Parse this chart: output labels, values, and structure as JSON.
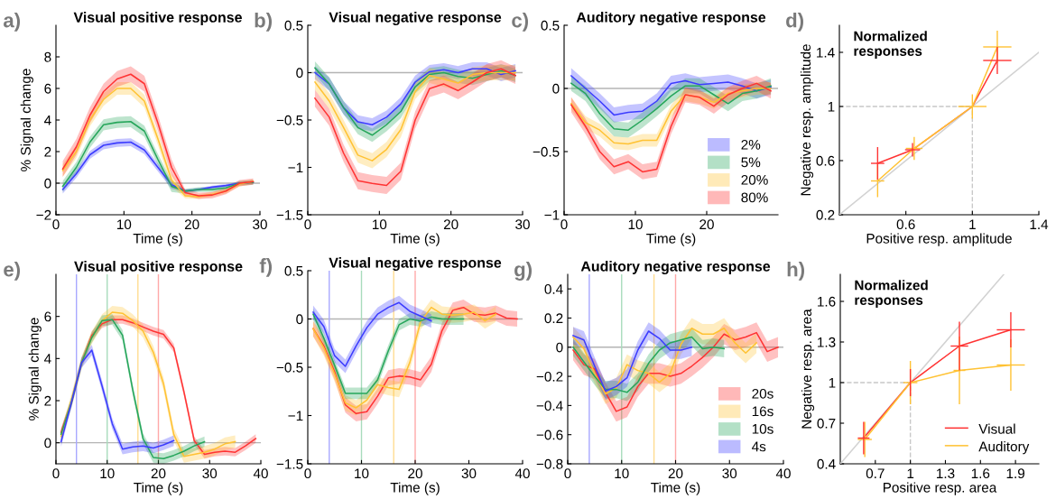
{
  "chart_data": [
    {
      "type": "line",
      "title": "Visual positive response",
      "xlabel": "Time (s)",
      "ylabel": "% Signal change",
      "annotations": [
        "a)"
      ],
      "x": [
        1,
        3,
        5,
        7,
        9,
        11,
        13,
        15,
        17,
        19,
        21,
        23,
        25,
        27,
        29
      ],
      "xlim": [
        0,
        30
      ],
      "xticks": [
        0,
        10,
        20,
        30
      ],
      "ylim": [
        -2,
        10
      ],
      "yticks": [
        {
          "value": -2,
          "label": "−2"
        },
        0,
        2,
        4,
        6,
        8
      ],
      "ref_lines": [
        {
          "axis": "y",
          "value": 0,
          "color": "#b4b4b4"
        }
      ],
      "series": [
        {
          "color": "#3c3cff",
          "values": [
            -0.4,
            0.6,
            1.8,
            2.4,
            2.55,
            2.6,
            2.1,
            1.0,
            -0.1,
            -0.5,
            -0.4,
            -0.25,
            -0.15,
            0.0,
            0.05
          ],
          "lower": [
            -0.65,
            0.35,
            1.55,
            2.15,
            2.3,
            2.35,
            1.85,
            0.75,
            -0.35,
            -0.6,
            -0.5,
            -0.35,
            -0.25,
            -0.1,
            -0.05
          ],
          "upper": [
            -0.15,
            0.85,
            2.05,
            2.65,
            2.8,
            2.85,
            2.35,
            1.25,
            0.15,
            -0.4,
            -0.3,
            -0.15,
            -0.05,
            0.1,
            0.15
          ]
        },
        {
          "color": "#26a65b",
          "values": [
            -0.2,
            1.0,
            2.6,
            3.7,
            3.85,
            3.9,
            3.3,
            1.5,
            -0.2,
            -0.5,
            -0.4,
            -0.4,
            -0.3,
            0.0,
            0.05
          ],
          "lower": [
            -0.55,
            0.65,
            2.25,
            3.35,
            3.5,
            3.55,
            2.95,
            1.15,
            -0.55,
            -0.65,
            -0.55,
            -0.55,
            -0.45,
            -0.15,
            -0.1
          ],
          "upper": [
            0.15,
            1.35,
            2.95,
            4.05,
            4.2,
            4.25,
            3.65,
            1.85,
            0.15,
            -0.35,
            -0.25,
            -0.25,
            -0.15,
            0.15,
            0.2
          ]
        },
        {
          "color": "#ffc233",
          "values": [
            0.8,
            2.0,
            4.0,
            5.3,
            6.0,
            6.0,
            5.2,
            2.8,
            0.2,
            -0.8,
            -0.85,
            -0.7,
            -0.5,
            -0.05,
            0.1
          ],
          "lower": [
            0.4,
            1.6,
            3.6,
            4.9,
            5.6,
            5.6,
            4.8,
            2.4,
            -0.2,
            -0.95,
            -1.0,
            -0.85,
            -0.65,
            -0.2,
            -0.05
          ],
          "upper": [
            1.2,
            2.4,
            4.4,
            5.7,
            6.4,
            6.4,
            5.6,
            3.2,
            0.6,
            -0.65,
            -0.7,
            -0.55,
            -0.35,
            0.1,
            0.25
          ]
        },
        {
          "color": "#ff3333",
          "values": [
            0.9,
            2.3,
            4.3,
            5.8,
            6.6,
            6.9,
            6.3,
            3.8,
            1.0,
            -0.6,
            -0.8,
            -0.75,
            -0.5,
            0.0,
            0.1
          ],
          "lower": [
            0.4,
            1.8,
            3.8,
            5.3,
            6.1,
            6.4,
            5.8,
            3.3,
            0.5,
            -0.8,
            -1.0,
            -0.95,
            -0.7,
            -0.2,
            -0.1
          ],
          "upper": [
            1.4,
            2.8,
            4.8,
            6.3,
            7.1,
            7.4,
            6.8,
            4.3,
            1.5,
            -0.4,
            -0.6,
            -0.55,
            -0.3,
            0.2,
            0.3
          ]
        }
      ]
    },
    {
      "type": "line",
      "title": "Visual negative response",
      "xlabel": "Time (s)",
      "annotations": [
        "b)"
      ],
      "x": [
        1,
        3,
        5,
        7,
        9,
        11,
        13,
        15,
        17,
        19,
        21,
        23,
        25,
        27,
        29
      ],
      "xlim": [
        0,
        30
      ],
      "xticks": [
        0,
        10,
        20,
        30
      ],
      "ylim": [
        -1.5,
        0.5
      ],
      "yticks": [
        {
          "value": -1.5,
          "label": "−1.5"
        },
        {
          "value": -1,
          "label": "−1"
        },
        {
          "value": -0.5,
          "label": "−0.5"
        },
        0,
        0.5
      ],
      "ref_lines": [
        {
          "axis": "y",
          "value": 0,
          "color": "#b4b4b4"
        }
      ],
      "series": [
        {
          "color": "#3c3cff",
          "values": [
            0.0,
            -0.12,
            -0.37,
            -0.52,
            -0.55,
            -0.47,
            -0.33,
            -0.1,
            0.01,
            0.03,
            0.0,
            0.04,
            0.04,
            -0.02,
            0.02
          ],
          "lower": [
            -0.07,
            -0.19,
            -0.44,
            -0.59,
            -0.62,
            -0.54,
            -0.4,
            -0.17,
            -0.06,
            -0.04,
            -0.07,
            -0.03,
            -0.03,
            -0.09,
            -0.05
          ],
          "upper": [
            0.07,
            -0.05,
            -0.3,
            -0.45,
            -0.48,
            -0.4,
            -0.26,
            -0.03,
            0.08,
            0.1,
            0.07,
            0.11,
            0.11,
            0.05,
            0.09
          ]
        },
        {
          "color": "#26a65b",
          "values": [
            0.05,
            -0.12,
            -0.37,
            -0.58,
            -0.66,
            -0.55,
            -0.41,
            -0.15,
            -0.02,
            0.0,
            -0.04,
            -0.06,
            -0.02,
            0.02,
            -0.03
          ],
          "lower": [
            -0.02,
            -0.19,
            -0.44,
            -0.65,
            -0.73,
            -0.62,
            -0.48,
            -0.22,
            -0.09,
            -0.07,
            -0.11,
            -0.13,
            -0.09,
            -0.05,
            -0.1
          ],
          "upper": [
            0.12,
            -0.05,
            -0.3,
            -0.51,
            -0.59,
            -0.48,
            -0.34,
            -0.08,
            0.05,
            0.07,
            0.03,
            0.01,
            0.05,
            0.09,
            0.04
          ]
        },
        {
          "color": "#ffc233",
          "values": [
            -0.1,
            -0.3,
            -0.58,
            -0.87,
            -0.93,
            -0.81,
            -0.6,
            -0.2,
            -0.03,
            -0.07,
            -0.11,
            -0.02,
            0.0,
            0.0,
            0.0
          ],
          "lower": [
            -0.18,
            -0.38,
            -0.66,
            -0.95,
            -1.01,
            -0.89,
            -0.68,
            -0.28,
            -0.11,
            -0.15,
            -0.19,
            -0.1,
            -0.08,
            -0.08,
            -0.08
          ],
          "upper": [
            -0.02,
            -0.22,
            -0.5,
            -0.79,
            -0.85,
            -0.73,
            -0.52,
            -0.12,
            0.05,
            0.01,
            -0.03,
            0.06,
            0.08,
            0.08,
            0.08
          ]
        },
        {
          "color": "#ff3333",
          "values": [
            -0.27,
            -0.47,
            -0.85,
            -1.14,
            -1.17,
            -1.19,
            -1.04,
            -0.5,
            -0.17,
            -0.12,
            -0.19,
            -0.1,
            0.0,
            0.04,
            -0.03
          ],
          "lower": [
            -0.36,
            -0.56,
            -0.94,
            -1.23,
            -1.26,
            -1.28,
            -1.13,
            -0.59,
            -0.26,
            -0.21,
            -0.28,
            -0.19,
            -0.09,
            -0.05,
            -0.12
          ],
          "upper": [
            -0.18,
            -0.38,
            -0.76,
            -1.05,
            -1.08,
            -1.1,
            -0.95,
            -0.41,
            -0.08,
            -0.03,
            -0.1,
            -0.01,
            0.09,
            0.13,
            0.06
          ]
        }
      ]
    },
    {
      "type": "line",
      "title": "Auditory negative response",
      "xlabel": "Time (s)",
      "annotations": [
        "c)"
      ],
      "legend": "bottom right",
      "x": [
        1,
        3,
        5,
        7,
        9,
        11,
        13,
        15,
        17,
        19,
        21,
        23,
        25,
        27,
        29
      ],
      "xlim": [
        0,
        30
      ],
      "xticks": [
        0,
        10,
        20
      ],
      "ylim": [
        -1,
        0.5
      ],
      "yticks": [
        {
          "value": -1,
          "label": "−1"
        },
        {
          "value": -0.5,
          "label": "−0.5"
        },
        0,
        0.5
      ],
      "ref_lines": [
        {
          "axis": "y",
          "value": 0,
          "color": "#b4b4b4"
        }
      ],
      "series": [
        {
          "name": "2%",
          "color": "#3c3cff",
          "values": [
            0.1,
            0.0,
            -0.1,
            -0.21,
            -0.19,
            -0.18,
            -0.1,
            0.04,
            0.06,
            0.03,
            0.04,
            0.05,
            0.02,
            -0.02,
            0.01
          ],
          "lower": [
            0.04,
            -0.06,
            -0.16,
            -0.27,
            -0.25,
            -0.24,
            -0.16,
            -0.02,
            0.0,
            -0.03,
            -0.02,
            -0.01,
            -0.04,
            -0.08,
            -0.05
          ],
          "upper": [
            0.16,
            0.06,
            -0.04,
            -0.15,
            -0.13,
            -0.12,
            -0.04,
            0.1,
            0.12,
            0.09,
            0.1,
            0.11,
            0.08,
            0.04,
            0.07
          ]
        },
        {
          "name": "5%",
          "color": "#26a65b",
          "values": [
            0.04,
            -0.04,
            -0.2,
            -0.32,
            -0.33,
            -0.25,
            -0.16,
            -0.06,
            0.02,
            0.02,
            -0.05,
            -0.12,
            -0.04,
            -0.02,
            0.02
          ],
          "lower": [
            -0.02,
            -0.1,
            -0.26,
            -0.38,
            -0.39,
            -0.31,
            -0.22,
            -0.12,
            -0.04,
            -0.04,
            -0.11,
            -0.18,
            -0.1,
            -0.08,
            -0.04
          ],
          "upper": [
            0.1,
            0.02,
            -0.14,
            -0.26,
            -0.27,
            -0.19,
            -0.1,
            0.0,
            0.08,
            0.08,
            0.01,
            -0.06,
            0.02,
            0.04,
            0.08
          ]
        },
        {
          "name": "20%",
          "color": "#ffc233",
          "values": [
            -0.12,
            -0.27,
            -0.33,
            -0.43,
            -0.44,
            -0.41,
            -0.41,
            -0.18,
            -0.05,
            -0.07,
            -0.11,
            -0.04,
            -0.02,
            0.0,
            0.0
          ],
          "lower": [
            -0.17,
            -0.32,
            -0.38,
            -0.48,
            -0.49,
            -0.46,
            -0.46,
            -0.23,
            -0.1,
            -0.12,
            -0.16,
            -0.09,
            -0.07,
            -0.05,
            -0.05
          ],
          "upper": [
            -0.07,
            -0.22,
            -0.28,
            -0.38,
            -0.39,
            -0.36,
            -0.36,
            -0.13,
            0.0,
            -0.02,
            -0.06,
            0.01,
            0.03,
            0.05,
            0.05
          ]
        },
        {
          "name": "80%",
          "color": "#ff3333",
          "values": [
            -0.13,
            -0.3,
            -0.5,
            -0.62,
            -0.58,
            -0.66,
            -0.64,
            -0.3,
            -0.05,
            -0.07,
            -0.14,
            -0.05,
            0.0,
            0.04,
            -0.02
          ],
          "lower": [
            -0.19,
            -0.36,
            -0.56,
            -0.68,
            -0.64,
            -0.72,
            -0.7,
            -0.36,
            -0.11,
            -0.13,
            -0.2,
            -0.11,
            -0.06,
            -0.02,
            -0.08
          ],
          "upper": [
            -0.07,
            -0.24,
            -0.44,
            -0.56,
            -0.52,
            -0.6,
            -0.58,
            -0.24,
            0.01,
            -0.01,
            -0.08,
            0.01,
            0.06,
            0.1,
            0.04
          ]
        }
      ]
    },
    {
      "type": "line",
      "xlabel": "Positive resp. amplitude",
      "ylabel": "Negative resp. amplitude",
      "annotations": [
        "d)",
        "Normalized\nresponses"
      ],
      "xlim": [
        0.2,
        1.4
      ],
      "xticks": [
        0.6,
        1,
        1.4
      ],
      "ylim": [
        0.2,
        1.6
      ],
      "yticks": [
        0.2,
        0.6,
        1,
        1.4
      ],
      "ref_lines": [
        {
          "axis": "x",
          "value": 1,
          "color": "#c8c8c8",
          "line_style": "dashed"
        },
        {
          "axis": "y",
          "value": 1,
          "color": "#c8c8c8",
          "line_style": "dashed"
        }
      ],
      "series": [
        {
          "color": "#d2d2d2",
          "x": [
            0.2,
            1.4
          ],
          "values": [
            0.2,
            1.4
          ]
        },
        {
          "color": "#ff3333",
          "x": [
            0.43,
            0.64,
            1,
            1.15
          ],
          "values": [
            0.58,
            0.68,
            1,
            1.34
          ],
          "errors": [
            0.12,
            0.05,
            null,
            0.1
          ],
          "xerrors": [
            0.04,
            0.045,
            null,
            0.085
          ]
        },
        {
          "color": "#ffc233",
          "x": [
            0.43,
            0.65,
            1,
            1.15
          ],
          "values": [
            0.45,
            0.69,
            1,
            1.44
          ],
          "errors": [
            0.12,
            0.085,
            0.09,
            0.12
          ],
          "xerrors": [
            0.04,
            0.05,
            0.085,
            0.085
          ]
        }
      ]
    },
    {
      "type": "line",
      "title": "Visual positive response",
      "xlabel": "Time (s)",
      "ylabel": "% Signal change",
      "annotations": [
        "e)"
      ],
      "xlim": [
        0,
        40
      ],
      "xticks": [
        0,
        10,
        20,
        30,
        40
      ],
      "ylim": [
        -1,
        8
      ],
      "yticks": [
        0,
        2,
        4,
        6
      ],
      "ref_lines": [
        {
          "axis": "y",
          "value": 0,
          "color": "#b4b4b4"
        },
        {
          "axis": "x",
          "value": 4,
          "color": "#a8a8ff"
        },
        {
          "axis": "x",
          "value": 10,
          "color": "#a8dcbc"
        },
        {
          "axis": "x",
          "value": 16,
          "color": "#ffdc90"
        },
        {
          "axis": "x",
          "value": 20,
          "color": "#ffa8a8"
        }
      ],
      "series": [
        {
          "color": "#ff3333",
          "x": [
            1,
            3,
            5,
            7,
            9,
            11,
            13,
            15,
            17,
            19,
            21,
            23,
            25,
            27,
            29,
            31,
            33,
            35,
            37,
            39
          ],
          "values": [
            0.5,
            1.9,
            3.8,
            5.1,
            5.65,
            5.85,
            5.85,
            5.7,
            5.5,
            5.3,
            5.15,
            4.5,
            2.4,
            0.1,
            -0.55,
            -0.45,
            -0.4,
            -0.45,
            -0.15,
            0.2
          ],
          "lower": [
            0.3,
            1.7,
            3.6,
            4.9,
            5.45,
            5.65,
            5.65,
            5.5,
            5.3,
            5.1,
            4.95,
            4.3,
            2.2,
            -0.1,
            -0.75,
            -0.65,
            -0.6,
            -0.65,
            -0.35,
            0.0
          ],
          "upper": [
            0.7,
            2.1,
            4.0,
            5.3,
            5.85,
            6.05,
            6.05,
            5.9,
            5.7,
            5.5,
            5.35,
            4.7,
            2.6,
            0.3,
            -0.35,
            -0.25,
            -0.2,
            -0.25,
            0.05,
            0.4
          ]
        },
        {
          "color": "#ffc233",
          "x": [
            1,
            3,
            5,
            7,
            9,
            11,
            13,
            15,
            17,
            19,
            21,
            23,
            25,
            27,
            29,
            31,
            33,
            35
          ],
          "values": [
            0.3,
            2.0,
            3.8,
            5.0,
            5.8,
            6.2,
            6.15,
            5.8,
            5.3,
            4.3,
            2.8,
            0.4,
            -0.65,
            -0.55,
            -0.45,
            -0.3,
            -0.05,
            0.05
          ],
          "lower": [
            0.0,
            1.7,
            3.5,
            4.7,
            5.5,
            5.9,
            5.85,
            5.5,
            5.0,
            4.0,
            2.5,
            0.1,
            -0.95,
            -0.85,
            -0.75,
            -0.6,
            -0.35,
            -0.25
          ],
          "upper": [
            0.6,
            2.3,
            4.1,
            5.3,
            6.1,
            6.5,
            6.45,
            6.1,
            5.6,
            4.6,
            3.1,
            0.7,
            -0.35,
            -0.25,
            -0.15,
            0.0,
            0.25,
            0.35
          ]
        },
        {
          "color": "#26a65b",
          "x": [
            1,
            3,
            5,
            7,
            9,
            11,
            13,
            15,
            17,
            19,
            21,
            23,
            25,
            27,
            29
          ],
          "values": [
            0.4,
            1.9,
            3.8,
            5.0,
            5.8,
            5.85,
            5.1,
            2.5,
            0.2,
            -0.7,
            -0.75,
            -0.6,
            -0.4,
            -0.15,
            0.05
          ],
          "lower": [
            0.15,
            1.65,
            3.55,
            4.75,
            5.55,
            5.6,
            4.85,
            2.25,
            -0.05,
            -0.95,
            -1.0,
            -0.85,
            -0.65,
            -0.4,
            -0.2
          ],
          "upper": [
            0.65,
            2.15,
            4.05,
            5.25,
            6.05,
            6.1,
            5.35,
            2.75,
            0.45,
            -0.45,
            -0.5,
            -0.35,
            -0.15,
            0.1,
            0.3
          ]
        },
        {
          "color": "#3c3cff",
          "x": [
            1,
            3,
            5,
            7,
            9,
            11,
            13,
            15,
            17,
            19,
            21,
            23
          ],
          "values": [
            0.05,
            1.9,
            3.8,
            4.4,
            2.7,
            0.9,
            -0.3,
            -0.2,
            -0.15,
            -0.25,
            -0.1,
            0.1
          ],
          "lower": [
            -0.2,
            1.65,
            3.55,
            4.15,
            2.45,
            0.65,
            -0.55,
            -0.45,
            -0.4,
            -0.5,
            -0.35,
            -0.15
          ],
          "upper": [
            0.3,
            2.15,
            4.05,
            4.65,
            2.95,
            1.15,
            -0.05,
            0.05,
            0.1,
            0.0,
            0.15,
            0.35
          ]
        }
      ]
    },
    {
      "type": "line",
      "title": "Visual negative response",
      "xlabel": "Time (s)",
      "annotations": [
        "f)"
      ],
      "xlim": [
        0,
        40
      ],
      "xticks": [
        0,
        10,
        20,
        30,
        40
      ],
      "ylim": [
        -1.5,
        0.5
      ],
      "yticks": [
        {
          "value": -1.5,
          "label": "−1.5"
        },
        {
          "value": -1,
          "label": "−1"
        },
        {
          "value": -0.5,
          "label": "−0.5"
        },
        0,
        0.5
      ],
      "ref_lines": [
        {
          "axis": "y",
          "value": 0,
          "color": "#b4b4b4"
        },
        {
          "axis": "x",
          "value": 4,
          "color": "#a8a8ff"
        },
        {
          "axis": "x",
          "value": 10,
          "color": "#a8dcbc"
        },
        {
          "axis": "x",
          "value": 16,
          "color": "#ffdc90"
        },
        {
          "axis": "x",
          "value": 20,
          "color": "#ffa8a8"
        }
      ],
      "series": [
        {
          "color": "#ff3333",
          "x": [
            1,
            3,
            5,
            7,
            9,
            11,
            13,
            15,
            17,
            19,
            21,
            23,
            25,
            27,
            29,
            31,
            33,
            35,
            37,
            39
          ],
          "values": [
            -0.1,
            -0.28,
            -0.55,
            -0.89,
            -0.98,
            -0.96,
            -0.8,
            -0.61,
            -0.59,
            -0.6,
            -0.63,
            -0.47,
            -0.12,
            0.09,
            0.12,
            0.05,
            0.04,
            0.06,
            0.01,
            0.0
          ],
          "lower": [
            -0.18,
            -0.36,
            -0.63,
            -0.97,
            -1.06,
            -1.04,
            -0.88,
            -0.69,
            -0.67,
            -0.68,
            -0.71,
            -0.55,
            -0.2,
            0.01,
            0.04,
            -0.03,
            -0.04,
            -0.02,
            -0.07,
            -0.08
          ],
          "upper": [
            -0.02,
            -0.2,
            -0.47,
            -0.81,
            -0.9,
            -0.88,
            -0.72,
            -0.53,
            -0.51,
            -0.52,
            -0.55,
            -0.39,
            -0.04,
            0.17,
            0.2,
            0.13,
            0.12,
            0.14,
            0.09,
            0.08
          ]
        },
        {
          "color": "#ffc233",
          "x": [
            1,
            3,
            5,
            7,
            9,
            11,
            13,
            15,
            17,
            19,
            21,
            23,
            25,
            27,
            29,
            31,
            33,
            35
          ],
          "values": [
            -0.1,
            -0.3,
            -0.57,
            -0.87,
            -0.92,
            -0.84,
            -0.68,
            -0.71,
            -0.73,
            -0.45,
            -0.03,
            0.12,
            0.05,
            0.04,
            0.05,
            0.07,
            -0.02,
            0.05
          ],
          "lower": [
            -0.18,
            -0.38,
            -0.65,
            -0.95,
            -1.0,
            -0.92,
            -0.76,
            -0.79,
            -0.81,
            -0.53,
            -0.11,
            0.04,
            -0.03,
            -0.04,
            -0.03,
            -0.01,
            -0.1,
            -0.03
          ],
          "upper": [
            -0.02,
            -0.22,
            -0.49,
            -0.79,
            -0.84,
            -0.76,
            -0.6,
            -0.63,
            -0.65,
            -0.37,
            0.05,
            0.2,
            0.13,
            0.12,
            0.13,
            0.15,
            0.06,
            0.13
          ]
        },
        {
          "color": "#26a65b",
          "x": [
            1,
            3,
            5,
            7,
            9,
            11,
            13,
            15,
            17,
            19,
            21,
            23,
            25,
            27,
            29
          ],
          "values": [
            0.05,
            -0.2,
            -0.48,
            -0.77,
            -0.77,
            -0.77,
            -0.63,
            -0.33,
            -0.06,
            0.0,
            -0.02,
            0.02,
            0.0,
            0.0,
            0.0
          ],
          "lower": [
            -0.01,
            -0.26,
            -0.54,
            -0.83,
            -0.83,
            -0.83,
            -0.69,
            -0.39,
            -0.12,
            -0.06,
            -0.08,
            -0.04,
            -0.06,
            -0.06,
            -0.06
          ],
          "upper": [
            0.11,
            -0.14,
            -0.42,
            -0.71,
            -0.71,
            -0.71,
            -0.57,
            -0.27,
            0.0,
            0.06,
            0.04,
            0.08,
            0.06,
            0.06,
            0.06
          ]
        },
        {
          "color": "#3c3cff",
          "x": [
            1,
            3,
            5,
            7,
            9,
            11,
            13,
            15,
            17,
            19,
            21,
            23
          ],
          "values": [
            0.07,
            -0.08,
            -0.38,
            -0.49,
            -0.28,
            -0.09,
            0.05,
            0.12,
            0.17,
            0.08,
            0.03,
            -0.02
          ],
          "lower": [
            0.0,
            -0.15,
            -0.45,
            -0.56,
            -0.35,
            -0.16,
            -0.02,
            0.05,
            0.1,
            0.01,
            -0.04,
            -0.09
          ],
          "upper": [
            0.14,
            -0.01,
            -0.31,
            -0.42,
            -0.21,
            -0.02,
            0.12,
            0.19,
            0.24,
            0.15,
            0.1,
            0.05
          ]
        }
      ]
    },
    {
      "type": "line",
      "title": "Auditory negative response",
      "xlabel": "Time (s)",
      "annotations": [
        "g)"
      ],
      "legend": "bottom right",
      "xlim": [
        0,
        40
      ],
      "xticks": [
        0,
        10,
        20,
        30,
        40
      ],
      "ylim": [
        -0.8,
        0.5
      ],
      "yticks": [
        {
          "value": -0.8,
          "label": "−0.8"
        },
        {
          "value": -0.6,
          "label": "−0.6"
        },
        {
          "value": -0.4,
          "label": "−0.4"
        },
        {
          "value": -0.2,
          "label": "−0.2"
        },
        0,
        0.2,
        0.4
      ],
      "ref_lines": [
        {
          "axis": "y",
          "value": 0,
          "color": "#b4b4b4"
        },
        {
          "axis": "x",
          "value": 4,
          "color": "#a8a8ff"
        },
        {
          "axis": "x",
          "value": 10,
          "color": "#a8dcbc"
        },
        {
          "axis": "x",
          "value": 16,
          "color": "#ffdc90"
        },
        {
          "axis": "x",
          "value": 20,
          "color": "#ffa8a8"
        }
      ],
      "series": [
        {
          "name": "20s",
          "color": "#ff3333",
          "x": [
            1,
            3,
            5,
            7,
            9,
            11,
            13,
            15,
            17,
            19,
            21,
            23,
            25,
            27,
            29,
            31,
            33,
            35,
            37,
            39
          ],
          "values": [
            -0.02,
            -0.12,
            -0.15,
            -0.31,
            -0.44,
            -0.41,
            -0.27,
            -0.18,
            -0.18,
            -0.2,
            -0.18,
            -0.13,
            -0.07,
            0.0,
            0.09,
            0.05,
            0.07,
            0.1,
            -0.03,
            0.0
          ],
          "lower": [
            -0.09,
            -0.19,
            -0.22,
            -0.38,
            -0.51,
            -0.48,
            -0.34,
            -0.25,
            -0.25,
            -0.27,
            -0.25,
            -0.2,
            -0.14,
            -0.07,
            0.02,
            -0.02,
            0.0,
            0.03,
            -0.1,
            -0.07
          ],
          "upper": [
            0.05,
            -0.05,
            -0.08,
            -0.24,
            -0.37,
            -0.34,
            -0.2,
            -0.11,
            -0.11,
            -0.13,
            -0.11,
            -0.06,
            0.0,
            0.07,
            0.16,
            0.12,
            0.14,
            0.17,
            0.04,
            0.07
          ]
        },
        {
          "name": "16s",
          "color": "#ffc233",
          "x": [
            1,
            3,
            5,
            7,
            9,
            11,
            13,
            15,
            17,
            19,
            21,
            23,
            25,
            27,
            29,
            31,
            33,
            35
          ],
          "values": [
            0.07,
            -0.01,
            -0.18,
            -0.32,
            -0.28,
            -0.12,
            -0.16,
            -0.18,
            -0.24,
            -0.18,
            0.02,
            0.13,
            0.09,
            0.09,
            0.13,
            0.03,
            -0.04,
            0.03
          ],
          "lower": [
            0.0,
            -0.08,
            -0.25,
            -0.39,
            -0.35,
            -0.19,
            -0.23,
            -0.25,
            -0.31,
            -0.25,
            -0.05,
            0.06,
            0.02,
            0.02,
            0.06,
            -0.04,
            -0.11,
            -0.04
          ],
          "upper": [
            0.14,
            0.06,
            -0.11,
            -0.25,
            -0.21,
            -0.05,
            -0.09,
            -0.11,
            -0.17,
            -0.11,
            0.09,
            0.2,
            0.16,
            0.16,
            0.2,
            0.1,
            0.03,
            0.1
          ]
        },
        {
          "name": "10s",
          "color": "#26a65b",
          "x": [
            1,
            3,
            5,
            7,
            9,
            11,
            13,
            15,
            17,
            19,
            21,
            23,
            25,
            27,
            29
          ],
          "values": [
            0.0,
            -0.1,
            -0.2,
            -0.29,
            -0.29,
            -0.31,
            -0.24,
            -0.11,
            -0.02,
            0.03,
            0.05,
            0.07,
            -0.01,
            0.0,
            -0.01
          ],
          "lower": [
            -0.06,
            -0.16,
            -0.26,
            -0.35,
            -0.35,
            -0.37,
            -0.3,
            -0.17,
            -0.08,
            -0.03,
            -0.01,
            0.01,
            -0.07,
            -0.06,
            -0.07
          ],
          "upper": [
            0.06,
            -0.04,
            -0.14,
            -0.23,
            -0.23,
            -0.25,
            -0.18,
            -0.05,
            0.04,
            0.09,
            0.11,
            0.13,
            0.05,
            0.06,
            0.05
          ]
        },
        {
          "name": "4s",
          "color": "#3c3cff",
          "x": [
            1,
            3,
            5,
            7,
            9,
            11,
            13,
            15,
            17,
            19,
            21,
            23
          ],
          "values": [
            0.08,
            0.05,
            -0.13,
            -0.3,
            -0.27,
            -0.21,
            -0.02,
            0.11,
            0.06,
            -0.02,
            -0.02,
            0.0
          ],
          "lower": [
            0.02,
            -0.01,
            -0.19,
            -0.36,
            -0.33,
            -0.27,
            -0.08,
            0.05,
            0.0,
            -0.08,
            -0.08,
            -0.06
          ],
          "upper": [
            0.14,
            0.11,
            -0.07,
            -0.24,
            -0.21,
            -0.15,
            0.04,
            0.17,
            0.12,
            0.04,
            0.04,
            0.06
          ]
        }
      ]
    },
    {
      "type": "line",
      "xlabel": "Positive resp. area",
      "ylabel": "Negative resp. area",
      "annotations": [
        "h)",
        "Normalized\nresponses"
      ],
      "legend": "bottom right",
      "xlim": [
        0.4,
        2.1
      ],
      "xticks": [
        0.7,
        1,
        1.3,
        1.6,
        1.9
      ],
      "ylim": [
        0.4,
        1.8
      ],
      "yticks": [
        0.4,
        0.7,
        1,
        1.3,
        1.6
      ],
      "ref_lines": [
        {
          "axis": "x",
          "value": 1,
          "color": "#c8c8c8",
          "line_style": "dashed"
        },
        {
          "axis": "y",
          "value": 1,
          "color": "#c8c8c8",
          "line_style": "dashed"
        }
      ],
      "series": [
        {
          "color": "#d2d2d2",
          "x": [
            0.4,
            1.8
          ],
          "values": [
            0.4,
            1.8
          ]
        },
        {
          "name": "Visual",
          "color": "#ff3333",
          "x": [
            0.6,
            1,
            1.42,
            1.86
          ],
          "values": [
            0.59,
            1,
            1.27,
            1.39
          ],
          "errors": [
            0.12,
            0.1,
            0.18,
            0.13
          ],
          "xerrors": [
            0.05,
            null,
            0.075,
            0.12
          ]
        },
        {
          "name": "Auditory",
          "color": "#ffc233",
          "x": [
            0.61,
            1,
            1.42,
            1.86
          ],
          "values": [
            0.58,
            1,
            1.09,
            1.13
          ],
          "errors": [
            0.13,
            0.16,
            0.25,
            0.19
          ],
          "xerrors": [
            0.06,
            0.06,
            0.05,
            0.12
          ]
        }
      ]
    }
  ]
}
